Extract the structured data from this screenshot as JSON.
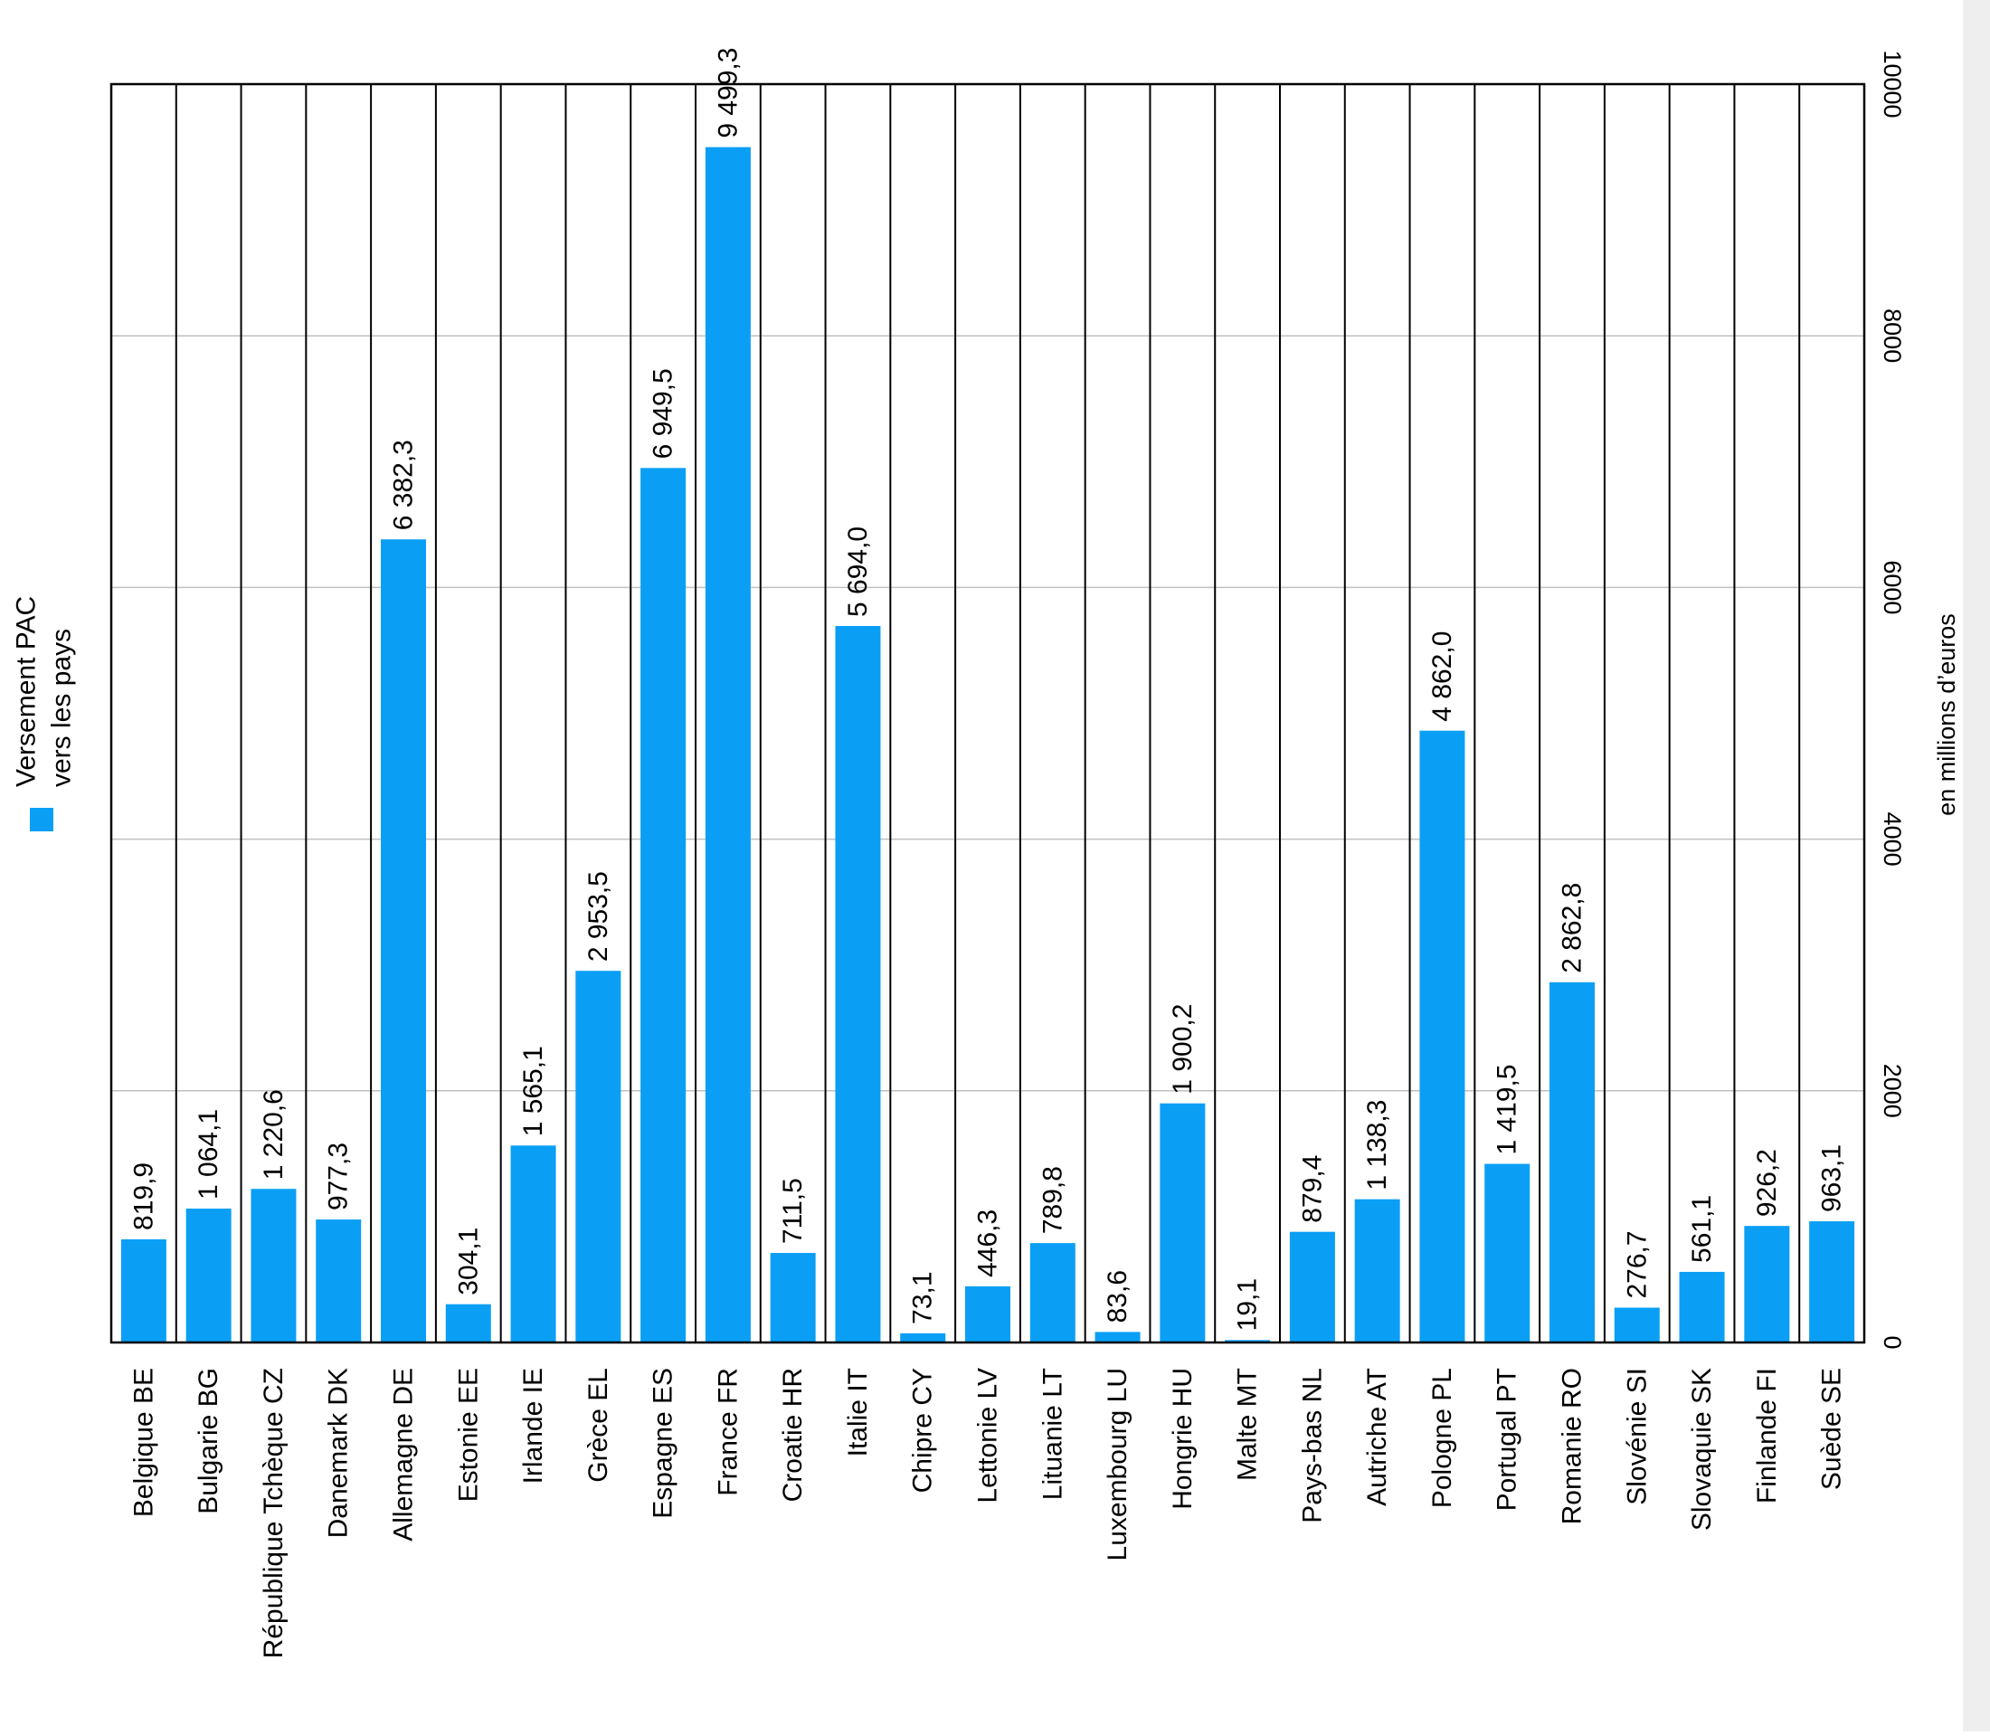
{
  "chart_data": {
    "type": "bar",
    "orientation": "rotated-90-cw",
    "categories": [
      "Belgique BE",
      "Bulgarie BG",
      "République Tchèque CZ",
      "Danemark DK",
      "Allemagne DE",
      "Estonie EE",
      "Irlande IE",
      "Grèce EL",
      "Espagne ES",
      "France FR",
      "Croatie HR",
      "Italie IT",
      "Chipre CY",
      "Lettonie LV",
      "Lituanie LT",
      "Luxembourg LU",
      "Hongrie HU",
      "Malte MT",
      "Pays-bas NL",
      "Autriche AT",
      "Pologne PL",
      "Portugal PT",
      "Romanie RO",
      "Slovénie SI",
      "Slovaquie SK",
      "Finlande FI",
      "Suède SE"
    ],
    "series": [
      {
        "name": "Versement PAC vers les pays",
        "values": [
          819.9,
          1064.1,
          1220.6,
          977.3,
          6382.3,
          304.1,
          1565.1,
          2953.5,
          6949.5,
          9499.3,
          711.5,
          5694.0,
          73.1,
          446.3,
          789.8,
          83.6,
          1900.2,
          19.1,
          879.4,
          1138.3,
          4862.0,
          1419.5,
          2862.8,
          276.7,
          561.1,
          926.2,
          963.1
        ],
        "labels": [
          "819,9",
          "1 064,1",
          "1 220,6",
          "977,3",
          "6 382,3",
          "304,1",
          "1 565,1",
          "2 953,5",
          "6 949,5",
          "9 499,3",
          "711,5",
          "5 694,0",
          "73,1",
          "446,3",
          "789,8",
          "83,6",
          "1 900,2",
          "19,1",
          "879,4",
          "1 138,3",
          "4 862,0",
          "1 419,5",
          "2 862,8",
          "276,7",
          "561,1",
          "926,2",
          "963,1"
        ]
      }
    ],
    "legend": {
      "lines": [
        "Versement PAC",
        "vers les pays"
      ],
      "position": "top-left"
    },
    "ylabel": "en millions d’euros",
    "yticks": [
      "0",
      "2000",
      "4000",
      "6000",
      "8000",
      "10000"
    ],
    "ylim": [
      0,
      10000
    ],
    "grid": true,
    "colors": {
      "bar": "#0a9ff5",
      "grid": "#c0c0c0",
      "divider": "#000000"
    }
  }
}
